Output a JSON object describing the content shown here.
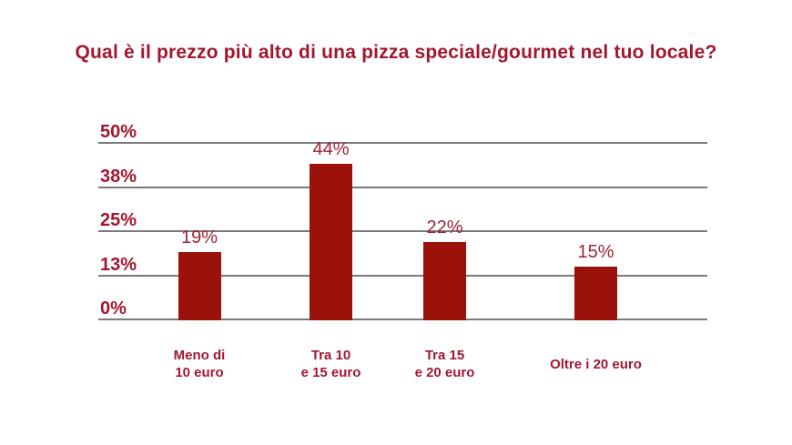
{
  "title": "Qual è il prezzo più alto di una pizza speciale/gourmet nel tuo locale?",
  "colors": {
    "title": "#a2172f",
    "bar": "#9a120a",
    "grid": "#7a7a7a",
    "axis_label": "#a2172f",
    "value_label": "#a22334",
    "category_label": "#a2172f",
    "background": "#ffffff"
  },
  "chart_data": {
    "type": "bar",
    "title": "Qual è il prezzo più alto di una pizza speciale/gourmet nel tuo locale?",
    "categories": [
      "Meno di 10 euro",
      "Tra 10 e 15 euro",
      "Tra 15 e 20 euro",
      "Oltre i 20 euro"
    ],
    "values": [
      19,
      44,
      22,
      15
    ],
    "value_labels": [
      "19%",
      "44%",
      "22%",
      "15%"
    ],
    "xlabel": "",
    "ylabel": "",
    "ylim": [
      0,
      50
    ],
    "grid": true,
    "legend": false,
    "y_ticks": [
      {
        "label": "50%",
        "value": 50
      },
      {
        "label": "38%",
        "value": 37.5
      },
      {
        "label": "25%",
        "value": 25
      },
      {
        "label": "13%",
        "value": 12.5
      },
      {
        "label": "0%",
        "value": 0
      }
    ]
  },
  "category_lines": [
    [
      "Meno di",
      "10 euro"
    ],
    [
      "Tra 10",
      "e 15 euro"
    ],
    [
      "Tra 15",
      "e 20 euro"
    ],
    [
      "Oltre i 20 euro"
    ]
  ]
}
